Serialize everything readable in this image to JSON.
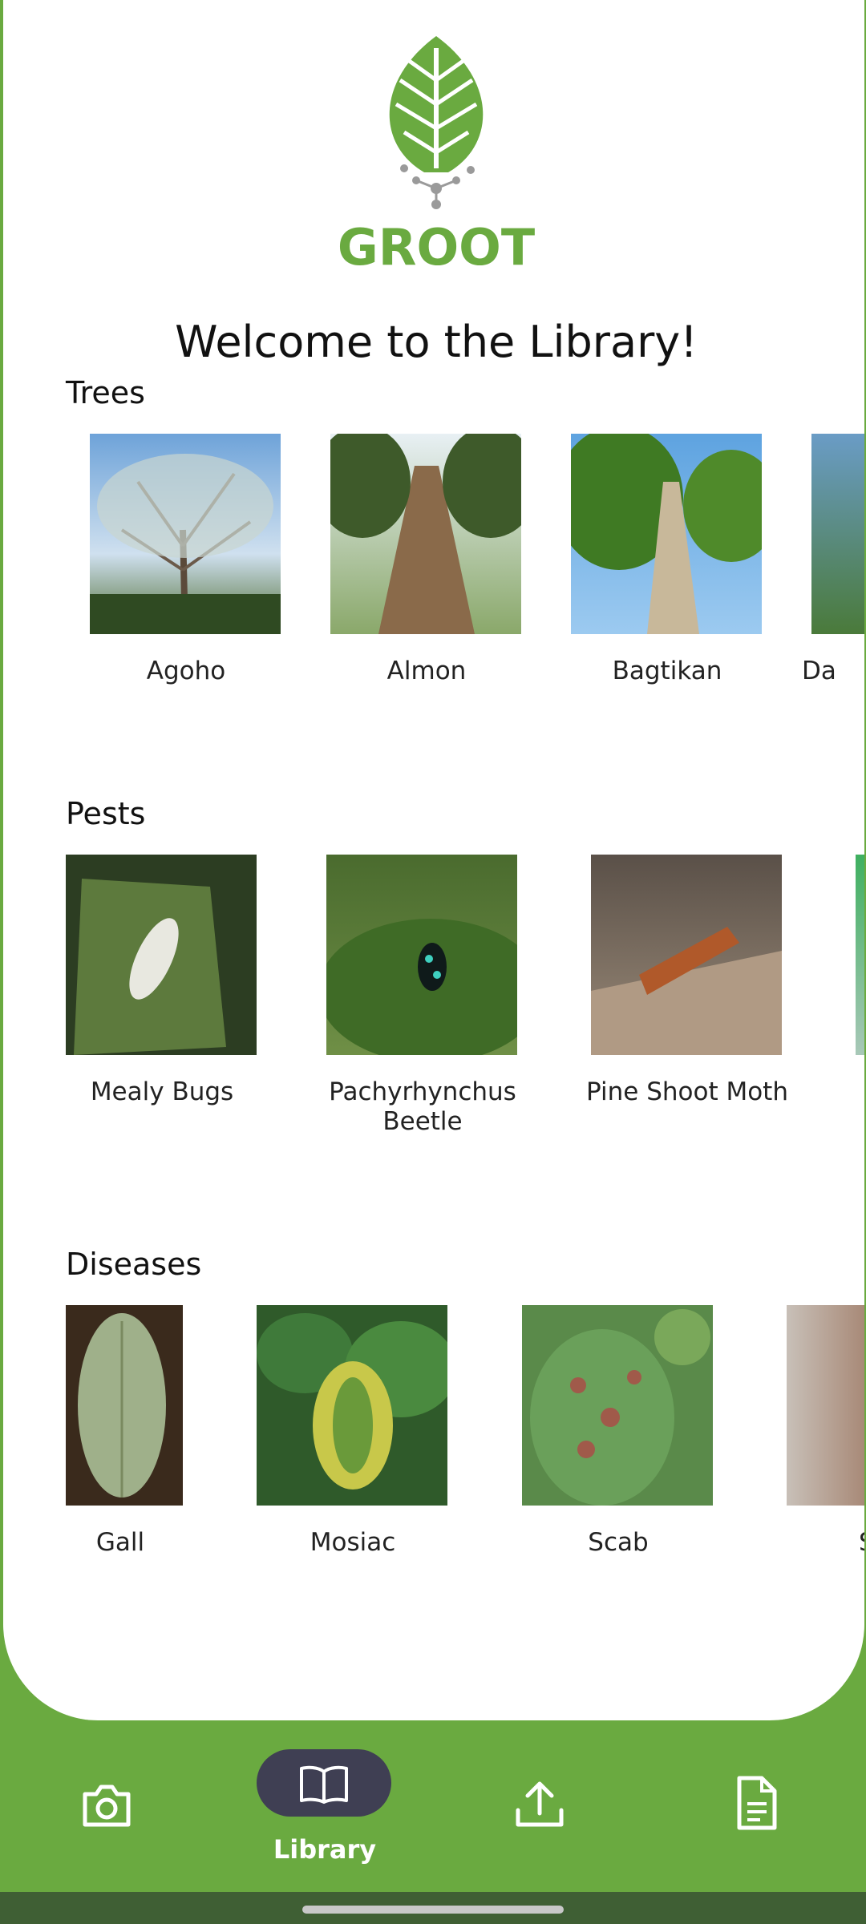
{
  "app": {
    "logo_text": "GROOT",
    "welcome": "Welcome to the Library!"
  },
  "sections": {
    "trees": {
      "title": "Trees",
      "items": [
        {
          "label": "Agoho"
        },
        {
          "label": "Almon"
        },
        {
          "label": "Bagtikan"
        },
        {
          "label": "Da"
        }
      ]
    },
    "pests": {
      "title": "Pests",
      "items": [
        {
          "label": "Mealy Bugs"
        },
        {
          "label": "Pachyrhynchus Beetle"
        },
        {
          "label": "Pine Shoot Moth"
        }
      ]
    },
    "diseases": {
      "title": "Diseases",
      "items": [
        {
          "label": "Gall"
        },
        {
          "label": "Mosiac"
        },
        {
          "label": "Scab"
        },
        {
          "label": "S"
        }
      ]
    }
  },
  "nav": {
    "items": [
      {
        "icon": "camera-icon",
        "label": ""
      },
      {
        "icon": "book-icon",
        "label": "Library",
        "active": true
      },
      {
        "icon": "upload-icon",
        "label": ""
      },
      {
        "icon": "document-icon",
        "label": ""
      }
    ]
  },
  "colors": {
    "brand_green": "#6aaa40",
    "active_pill": "#3f3f53",
    "background": "#ffffff"
  }
}
